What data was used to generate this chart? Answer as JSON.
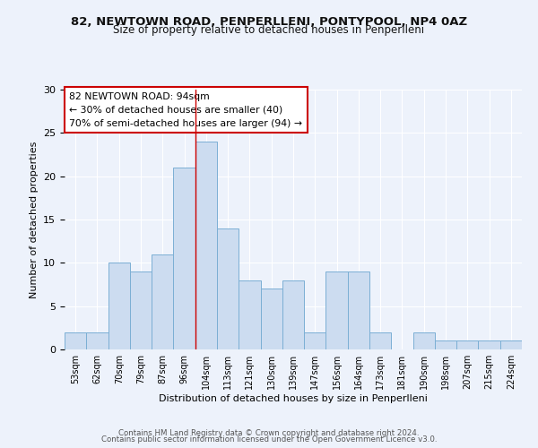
{
  "title1": "82, NEWTOWN ROAD, PENPERLLENI, PONTYPOOL, NP4 0AZ",
  "title2": "Size of property relative to detached houses in Penperlleni",
  "xlabel": "Distribution of detached houses by size in Penperlleni",
  "ylabel": "Number of detached properties",
  "categories": [
    "53sqm",
    "62sqm",
    "70sqm",
    "79sqm",
    "87sqm",
    "96sqm",
    "104sqm",
    "113sqm",
    "121sqm",
    "130sqm",
    "139sqm",
    "147sqm",
    "156sqm",
    "164sqm",
    "173sqm",
    "181sqm",
    "190sqm",
    "198sqm",
    "207sqm",
    "215sqm",
    "224sqm"
  ],
  "values": [
    2,
    2,
    10,
    9,
    11,
    21,
    24,
    14,
    8,
    7,
    8,
    2,
    9,
    9,
    2,
    0,
    2,
    1,
    1,
    1,
    1
  ],
  "bar_color": "#ccdcf0",
  "bar_edge_color": "#7bafd4",
  "red_line_x": 5.5,
  "red_line_color": "#cc0000",
  "annotation_text": "82 NEWTOWN ROAD: 94sqm\n← 30% of detached houses are smaller (40)\n70% of semi-detached houses are larger (94) →",
  "ylim": [
    0,
    30
  ],
  "yticks": [
    0,
    5,
    10,
    15,
    20,
    25,
    30
  ],
  "background_color": "#edf2fb",
  "grid_color": "#ffffff",
  "footer1": "Contains HM Land Registry data © Crown copyright and database right 2024.",
  "footer2": "Contains public sector information licensed under the Open Government Licence v3.0."
}
